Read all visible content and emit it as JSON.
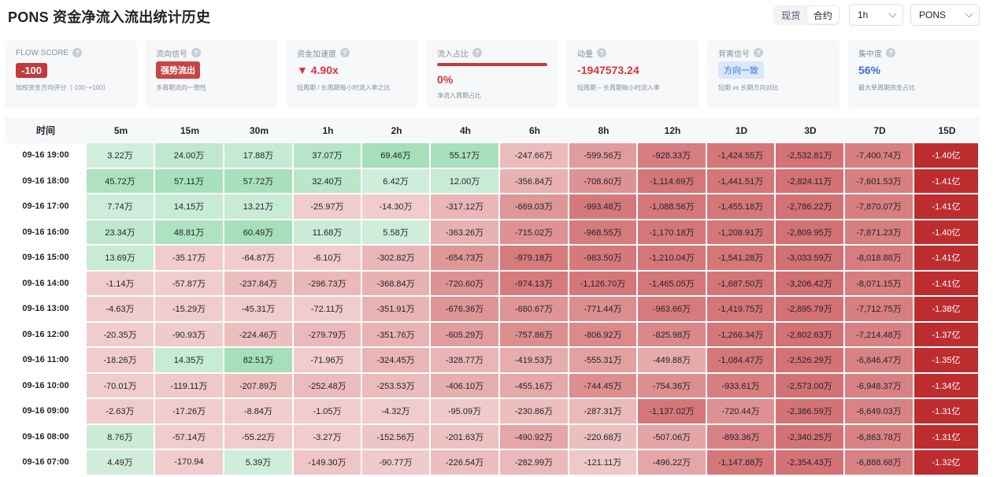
{
  "header": {
    "title": "PONS 资金净流入流出统计历史",
    "market_tabs": [
      {
        "label": "现货",
        "active": false
      },
      {
        "label": "合约",
        "active": true
      }
    ],
    "interval": "1h",
    "symbol": "PONS"
  },
  "cards": [
    {
      "label": "FLOW SCORE",
      "value": "-100",
      "sub": "加权资金方向评分（-100~+100）"
    },
    {
      "label": "流向信号",
      "value": "强势流出",
      "sub": "多周期流向一致性"
    },
    {
      "label": "资金加速度",
      "value": "▼ 4.90x",
      "sub": "短周期 / 长周期每小时流入率之比"
    },
    {
      "label": "流入占比",
      "value": "0%",
      "progress": 1.0,
      "sub": "净流入周期占比"
    },
    {
      "label": "动量",
      "value": "-1947573.24",
      "sub": "短周期 – 长周期每小时流入率"
    },
    {
      "label": "背离信号",
      "value": "方向一致",
      "sub": "短期 vs 长期方向对比"
    },
    {
      "label": "集中度",
      "value": "56%",
      "sub": "最大单周期资金占比"
    }
  ],
  "colors": {
    "accent_red": "#c23b3b",
    "accent_blue": "#3a70d6",
    "pos_light": "#d4efdf",
    "pos_dark": "#a6dfba",
    "neg_light": "#f3d3d3",
    "neg_dark": "#bd2d30"
  },
  "table": {
    "columns": [
      "时间",
      "5m",
      "15m",
      "30m",
      "1h",
      "2h",
      "4h",
      "6h",
      "8h",
      "12h",
      "1D",
      "3D",
      "7D",
      "15D"
    ],
    "rows": [
      {
        "time": "09-16 19:00",
        "cells": [
          "3.22万",
          "24.00万",
          "17.88万",
          "37.07万",
          "69.46万",
          "55.17万",
          "-247.66万",
          "-599.56万",
          "-928.33万",
          "-1,424.55万",
          "-2,532.81万",
          "-7,400.74万",
          "-1.40亿"
        ]
      },
      {
        "time": "09-16 18:00",
        "cells": [
          "45.72万",
          "57.11万",
          "57.72万",
          "32.40万",
          "6.42万",
          "12.00万",
          "-356.84万",
          "-708.60万",
          "-1,114.69万",
          "-1,441.51万",
          "-2,824.11万",
          "-7,601.53万",
          "-1.41亿"
        ]
      },
      {
        "time": "09-16 17:00",
        "cells": [
          "7.74万",
          "14.15万",
          "13.21万",
          "-25.97万",
          "-14.30万",
          "-317.12万",
          "-669.03万",
          "-993.48万",
          "-1,088.56万",
          "-1,455.18万",
          "-2,786.22万",
          "-7,870.07万",
          "-1.41亿"
        ]
      },
      {
        "time": "09-16 16:00",
        "cells": [
          "23.34万",
          "48.81万",
          "60.49万",
          "11.68万",
          "5.58万",
          "-363.26万",
          "-715.02万",
          "-968.55万",
          "-1,170.18万",
          "-1,208.91万",
          "-2,809.95万",
          "-7,871.23万",
          "-1.40亿"
        ]
      },
      {
        "time": "09-16 15:00",
        "cells": [
          "13.69万",
          "-35.17万",
          "-64.87万",
          "-6.10万",
          "-302.82万",
          "-654.73万",
          "-979.18万",
          "-983.50万",
          "-1,210.04万",
          "-1,541.28万",
          "-3,033.59万",
          "-8,018.88万",
          "-1.41亿"
        ]
      },
      {
        "time": "09-16 14:00",
        "cells": [
          "-1.14万",
          "-57.87万",
          "-237.84万",
          "-296.73万",
          "-368.84万",
          "-720.60万",
          "-974.13万",
          "-1,126.70万",
          "-1,465.05万",
          "-1,687.50万",
          "-3,206.42万",
          "-8,071.15万",
          "-1.41亿"
        ]
      },
      {
        "time": "09-16 13:00",
        "cells": [
          "-4.63万",
          "-15.29万",
          "-45.31万",
          "-72.11万",
          "-351.91万",
          "-676.36万",
          "-680.67万",
          "-771.44万",
          "-963.66万",
          "-1,419.75万",
          "-2,895.79万",
          "-7,712.75万",
          "-1.38亿"
        ]
      },
      {
        "time": "09-16 12:00",
        "cells": [
          "-20.35万",
          "-90.93万",
          "-224.46万",
          "-279.79万",
          "-351.76万",
          "-605.29万",
          "-757.86万",
          "-806.92万",
          "-825.98万",
          "-1,266.34万",
          "-2,802.63万",
          "-7,214.48万",
          "-1.37亿"
        ]
      },
      {
        "time": "09-16 11:00",
        "cells": [
          "-18.26万",
          "14.35万",
          "82.51万",
          "-71.96万",
          "-324.45万",
          "-328.77万",
          "-419.53万",
          "-555.31万",
          "-449.88万",
          "-1,084.47万",
          "-2,526.29万",
          "-6,846.47万",
          "-1.35亿"
        ]
      },
      {
        "time": "09-16 10:00",
        "cells": [
          "-70.01万",
          "-119.11万",
          "-207.89万",
          "-252.48万",
          "-253.53万",
          "-406.10万",
          "-455.16万",
          "-744.45万",
          "-754.36万",
          "-933.61万",
          "-2,573.00万",
          "-6,948.37万",
          "-1.34亿"
        ]
      },
      {
        "time": "09-16 09:00",
        "cells": [
          "-2.63万",
          "-17.26万",
          "-8.84万",
          "-1.05万",
          "-4.32万",
          "-95.09万",
          "-230.86万",
          "-287.31万",
          "-1,137.02万",
          "-720.44万",
          "-2,386.59万",
          "-6,649.03万",
          "-1.31亿"
        ]
      },
      {
        "time": "09-16 08:00",
        "cells": [
          "8.76万",
          "-57.14万",
          "-55.22万",
          "-3.27万",
          "-152.56万",
          "-201.63万",
          "-490.92万",
          "-220.68万",
          "-507.06万",
          "-893.36万",
          "-2,340.25万",
          "-6,863.78万",
          "-1.31亿"
        ]
      },
      {
        "time": "09-16 07:00",
        "cells": [
          "4.49万",
          "-170.94",
          "5.39万",
          "-149.30万",
          "-90.77万",
          "-226.54万",
          "-282.99万",
          "-121.11万",
          "-496.22万",
          "-1,147.88万",
          "-2,354.43万",
          "-6,888.68万",
          "-1.32亿"
        ]
      }
    ]
  }
}
